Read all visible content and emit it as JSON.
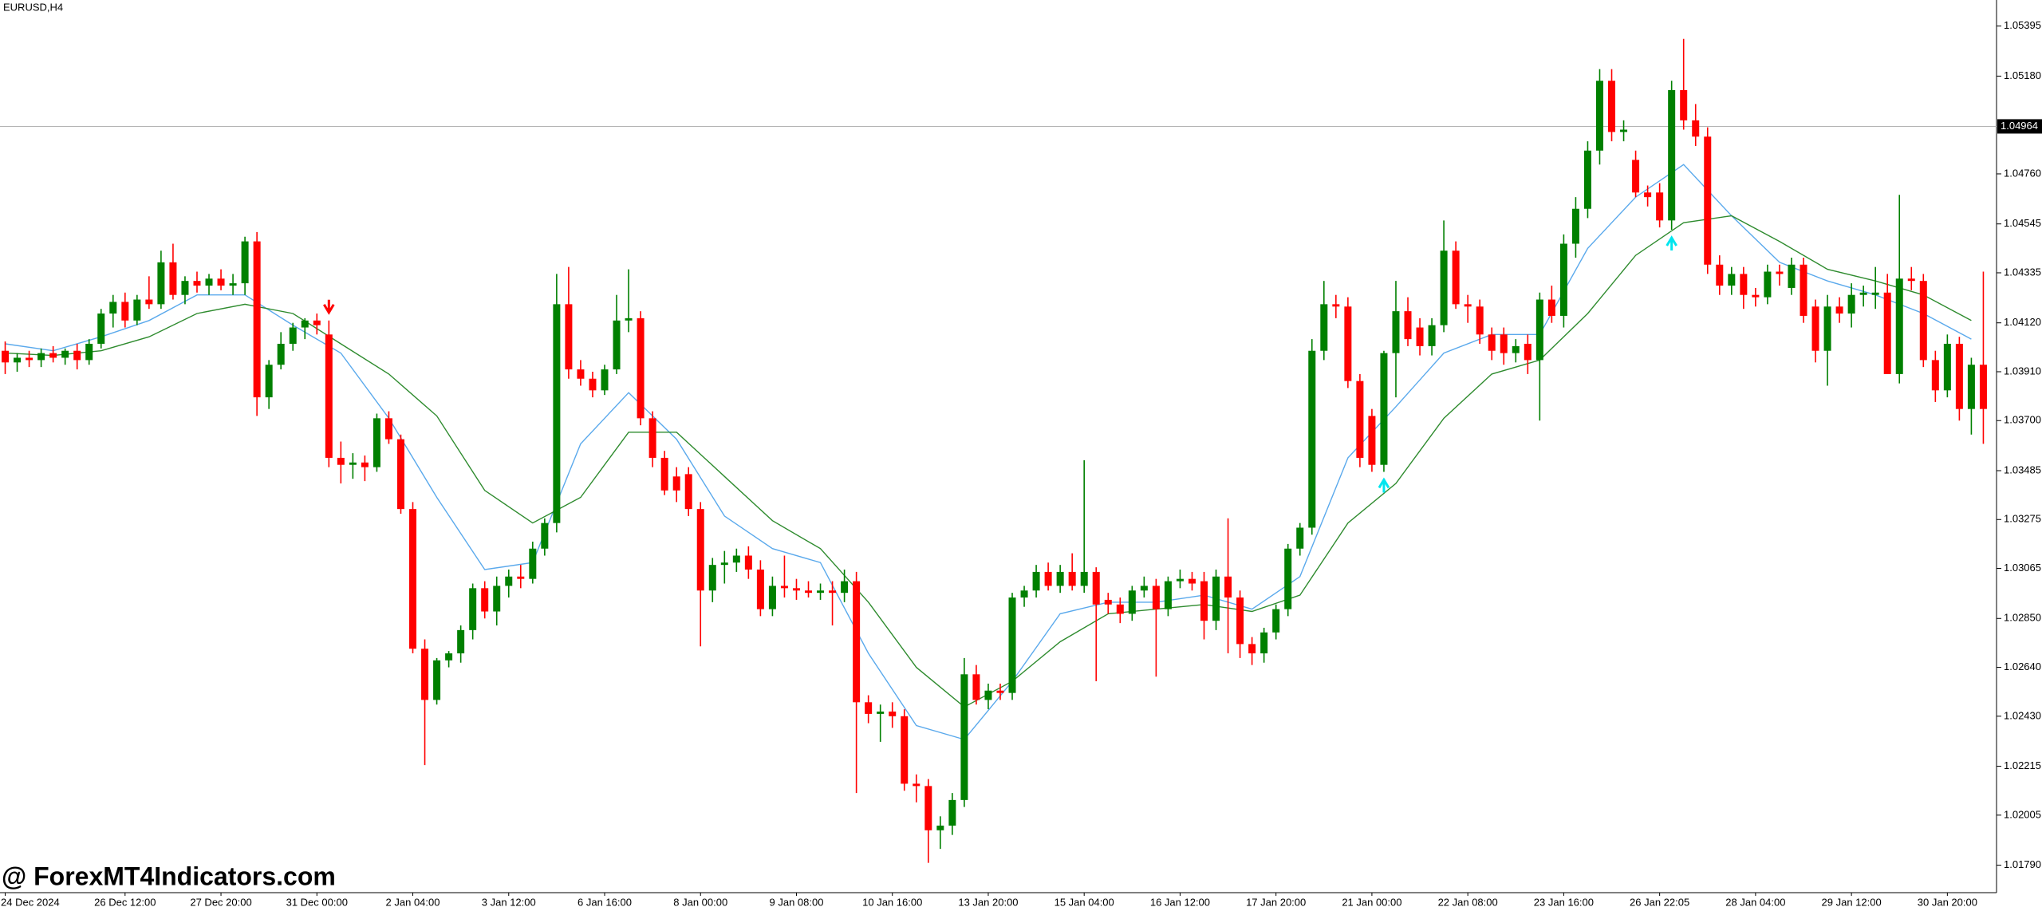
{
  "chart_data": {
    "type": "candlestick",
    "title": "EURUSD,H4",
    "watermark": "@ ForexMT4Indicators.com",
    "categories": [
      "24 Dec 2024",
      null,
      null,
      null,
      null,
      null,
      null,
      null,
      null,
      null,
      "26 Dec 12:00",
      null,
      null,
      null,
      null,
      null,
      null,
      null,
      "27 Dec 20:00",
      null,
      null,
      null,
      null,
      null,
      null,
      null,
      "31 Dec 00:00",
      null,
      null,
      null,
      null,
      null,
      null,
      null,
      "2 Jan 04:00",
      null,
      null,
      null,
      null,
      null,
      null,
      null,
      "3 Jan 12:00",
      null,
      null,
      null,
      null,
      null,
      null,
      null,
      "6 Jan 16:00",
      null,
      null,
      null,
      null,
      null,
      null,
      null,
      "8 Jan 00:00",
      null,
      null,
      null,
      null,
      null,
      null,
      null,
      "9 Jan 08:00",
      null,
      null,
      null,
      null,
      null,
      null,
      null,
      "10 Jan 16:00",
      null,
      null,
      null,
      null,
      null,
      null,
      null,
      "13 Jan 20:00",
      null,
      null,
      null,
      null,
      null,
      null,
      null,
      "15 Jan 04:00",
      null,
      null,
      null,
      null,
      null,
      null,
      null,
      "16 Jan 12:00",
      null,
      null,
      null,
      null,
      null,
      null,
      null,
      "17 Jan 20:00",
      null,
      null,
      null,
      null,
      null,
      null,
      null,
      "21 Jan 00:00",
      null,
      null,
      null,
      null,
      null,
      null,
      null,
      "22 Jan 08:00",
      null,
      null,
      null,
      null,
      null,
      null,
      null,
      "23 Jan 16:00",
      null,
      null,
      null,
      null,
      null,
      null,
      null,
      "26 Jan 22:05",
      null,
      null,
      null,
      null,
      null,
      null,
      null,
      "28 Jan 04:00",
      null,
      null,
      null,
      null,
      null,
      null,
      null,
      "29 Jan 12:00",
      null,
      null,
      null,
      null,
      null,
      null,
      null,
      "30 Jan 20:00",
      null,
      null,
      null
    ],
    "ohlc": [
      [
        1.04,
        1.0404,
        1.039,
        1.0395
      ],
      [
        1.0395,
        1.0399,
        1.0391,
        1.0397
      ],
      [
        1.0397,
        1.04,
        1.0393,
        1.0396
      ],
      [
        1.0396,
        1.0401,
        1.0393,
        1.0399
      ],
      [
        1.0399,
        1.0402,
        1.0395,
        1.0397
      ],
      [
        1.0397,
        1.0401,
        1.0394,
        1.04
      ],
      [
        1.04,
        1.0403,
        1.0392,
        1.0396
      ],
      [
        1.0396,
        1.0405,
        1.0394,
        1.0403
      ],
      [
        1.0403,
        1.0418,
        1.0401,
        1.0416
      ],
      [
        1.0416,
        1.0424,
        1.041,
        1.0421
      ],
      [
        1.0421,
        1.0425,
        1.041,
        1.0413
      ],
      [
        1.0413,
        1.0424,
        1.0411,
        1.0422
      ],
      [
        1.0422,
        1.0432,
        1.0418,
        1.042
      ],
      [
        1.042,
        1.0443,
        1.0418,
        1.0438
      ],
      [
        1.0438,
        1.0446,
        1.0422,
        1.0424
      ],
      [
        1.0424,
        1.0432,
        1.042,
        1.043
      ],
      [
        1.043,
        1.0434,
        1.0425,
        1.0428
      ],
      [
        1.0428,
        1.0433,
        1.0424,
        1.0431
      ],
      [
        1.0431,
        1.0435,
        1.0426,
        1.0428
      ],
      [
        1.0428,
        1.0433,
        1.0424,
        1.0429
      ],
      [
        1.0429,
        1.0449,
        1.0424,
        1.0447
      ],
      [
        1.0447,
        1.0451,
        1.0372,
        1.038
      ],
      [
        1.038,
        1.0396,
        1.0375,
        1.0394
      ],
      [
        1.0394,
        1.0408,
        1.0392,
        1.0403
      ],
      [
        1.0403,
        1.0412,
        1.04,
        1.041
      ],
      [
        1.041,
        1.0414,
        1.0405,
        1.0413
      ],
      [
        1.0413,
        1.0416,
        1.0407,
        1.0411
      ],
      [
        1.0407,
        1.0413,
        1.035,
        1.0354
      ],
      [
        1.0354,
        1.0361,
        1.0343,
        1.0351
      ],
      [
        1.0351,
        1.0356,
        1.0345,
        1.0352
      ],
      [
        1.0352,
        1.0355,
        1.0344,
        1.035
      ],
      [
        1.035,
        1.0373,
        1.0348,
        1.0371
      ],
      [
        1.0371,
        1.0374,
        1.036,
        1.0362
      ],
      [
        1.0362,
        1.0364,
        1.033,
        1.0332
      ],
      [
        1.0332,
        1.0335,
        1.027,
        1.0272
      ],
      [
        1.0272,
        1.0276,
        1.0222,
        1.025
      ],
      [
        1.025,
        1.0268,
        1.0248,
        1.0267
      ],
      [
        1.0267,
        1.0271,
        1.0264,
        1.027
      ],
      [
        1.027,
        1.0282,
        1.0266,
        1.028
      ],
      [
        1.028,
        1.03,
        1.0276,
        1.0298
      ],
      [
        1.0298,
        1.0301,
        1.0285,
        1.0288
      ],
      [
        1.0288,
        1.0303,
        1.0282,
        1.0299
      ],
      [
        1.0299,
        1.0306,
        1.0294,
        1.0303
      ],
      [
        1.0303,
        1.0308,
        1.0298,
        1.0302
      ],
      [
        1.0302,
        1.0318,
        1.03,
        1.0315
      ],
      [
        1.0315,
        1.0328,
        1.0312,
        1.0326
      ],
      [
        1.0326,
        1.0433,
        1.0322,
        1.042
      ],
      [
        1.042,
        1.0436,
        1.0388,
        1.0392
      ],
      [
        1.0392,
        1.0396,
        1.0385,
        1.0388
      ],
      [
        1.0388,
        1.0391,
        1.038,
        1.0383
      ],
      [
        1.0383,
        1.0394,
        1.0381,
        1.0392
      ],
      [
        1.0392,
        1.0424,
        1.039,
        1.0413
      ],
      [
        1.0413,
        1.0435,
        1.0408,
        1.0414
      ],
      [
        1.0414,
        1.0417,
        1.0368,
        1.0371
      ],
      [
        1.0371,
        1.0374,
        1.035,
        1.0354
      ],
      [
        1.0354,
        1.0357,
        1.0338,
        1.034
      ],
      [
        1.0346,
        1.035,
        1.0335,
        1.034
      ],
      [
        1.0347,
        1.035,
        1.0329,
        1.0332
      ],
      [
        1.0332,
        1.0335,
        1.0273,
        1.0297
      ],
      [
        1.0297,
        1.0311,
        1.0292,
        1.0308
      ],
      [
        1.0308,
        1.0314,
        1.03,
        1.0309
      ],
      [
        1.0309,
        1.0315,
        1.0305,
        1.0312
      ],
      [
        1.0312,
        1.0316,
        1.0302,
        1.0306
      ],
      [
        1.0306,
        1.031,
        1.0286,
        1.0289
      ],
      [
        1.0289,
        1.0303,
        1.0286,
        1.0299
      ],
      [
        1.0299,
        1.0312,
        1.0294,
        1.0298
      ],
      [
        1.0298,
        1.0302,
        1.0293,
        1.0297
      ],
      [
        1.0297,
        1.0301,
        1.0294,
        1.0296
      ],
      [
        1.0296,
        1.03,
        1.0293,
        1.0297
      ],
      [
        1.0297,
        1.0301,
        1.0282,
        1.0296
      ],
      [
        1.0296,
        1.0306,
        1.0292,
        1.0301
      ],
      [
        1.0301,
        1.0305,
        1.021,
        1.0249
      ],
      [
        1.0249,
        1.0252,
        1.024,
        1.0244
      ],
      [
        1.0244,
        1.0248,
        1.0232,
        1.0245
      ],
      [
        1.0245,
        1.0249,
        1.0238,
        1.0243
      ],
      [
        1.0243,
        1.0246,
        1.0211,
        1.0214
      ],
      [
        1.0214,
        1.0218,
        1.0206,
        1.0213
      ],
      [
        1.0213,
        1.0216,
        1.018,
        1.0194
      ],
      [
        1.0194,
        1.02,
        1.0186,
        1.0196
      ],
      [
        1.0196,
        1.021,
        1.0192,
        1.0207
      ],
      [
        1.0207,
        1.0268,
        1.0204,
        1.0261
      ],
      [
        1.0261,
        1.0265,
        1.0248,
        1.025
      ],
      [
        1.025,
        1.0257,
        1.0246,
        1.0254
      ],
      [
        1.0254,
        1.0257,
        1.025,
        1.0253
      ],
      [
        1.0253,
        1.0296,
        1.025,
        1.0294
      ],
      [
        1.0294,
        1.0299,
        1.029,
        1.0297
      ],
      [
        1.0297,
        1.0308,
        1.0294,
        1.0305
      ],
      [
        1.0305,
        1.0309,
        1.0297,
        1.0299
      ],
      [
        1.0299,
        1.0308,
        1.0296,
        1.0305
      ],
      [
        1.0305,
        1.0313,
        1.0297,
        1.0299
      ],
      [
        1.0299,
        1.0353,
        1.0296,
        1.0305
      ],
      [
        1.0305,
        1.0307,
        1.0258,
        1.0291
      ],
      [
        1.0293,
        1.0296,
        1.0287,
        1.0291
      ],
      [
        1.0291,
        1.0294,
        1.0283,
        1.0287
      ],
      [
        1.0287,
        1.0299,
        1.0284,
        1.0297
      ],
      [
        1.0297,
        1.0303,
        1.0294,
        1.0299
      ],
      [
        1.0299,
        1.0302,
        1.026,
        1.0289
      ],
      [
        1.0289,
        1.0303,
        1.0286,
        1.0301
      ],
      [
        1.0301,
        1.0306,
        1.0298,
        1.0302
      ],
      [
        1.0302,
        1.0305,
        1.0297,
        1.03
      ],
      [
        1.0301,
        1.0305,
        1.0276,
        1.0284
      ],
      [
        1.0284,
        1.0306,
        1.028,
        1.0303
      ],
      [
        1.0303,
        1.0328,
        1.027,
        1.0294
      ],
      [
        1.0294,
        1.0297,
        1.0268,
        1.0274
      ],
      [
        1.0274,
        1.0277,
        1.0265,
        1.027
      ],
      [
        1.027,
        1.0281,
        1.0266,
        1.0279
      ],
      [
        1.0279,
        1.0291,
        1.0276,
        1.0289
      ],
      [
        1.0289,
        1.0317,
        1.0286,
        1.0315
      ],
      [
        1.0315,
        1.0326,
        1.0312,
        1.0324
      ],
      [
        1.0324,
        1.0405,
        1.0321,
        1.04
      ],
      [
        1.04,
        1.043,
        1.0396,
        1.042
      ],
      [
        1.042,
        1.0424,
        1.0414,
        1.0419
      ],
      [
        1.0419,
        1.0423,
        1.0384,
        1.0387
      ],
      [
        1.0387,
        1.039,
        1.035,
        1.0354
      ],
      [
        1.0372,
        1.0375,
        1.0348,
        1.0351
      ],
      [
        1.0351,
        1.04,
        1.0348,
        1.0399
      ],
      [
        1.0399,
        1.043,
        1.038,
        1.0417
      ],
      [
        1.0417,
        1.0423,
        1.0402,
        1.0405
      ],
      [
        1.041,
        1.0414,
        1.0398,
        1.0402
      ],
      [
        1.0402,
        1.0414,
        1.0398,
        1.0411
      ],
      [
        1.0411,
        1.0456,
        1.0408,
        1.0443
      ],
      [
        1.0443,
        1.0447,
        1.0418,
        1.042
      ],
      [
        1.042,
        1.0424,
        1.0412,
        1.0419
      ],
      [
        1.0419,
        1.0422,
        1.0403,
        1.0407
      ],
      [
        1.0407,
        1.041,
        1.0396,
        1.04
      ],
      [
        1.0407,
        1.041,
        1.0394,
        1.0399
      ],
      [
        1.0399,
        1.0405,
        1.0395,
        1.0402
      ],
      [
        1.0403,
        1.0407,
        1.039,
        1.0396
      ],
      [
        1.0396,
        1.0425,
        1.037,
        1.0422
      ],
      [
        1.0422,
        1.0428,
        1.0412,
        1.0415
      ],
      [
        1.0415,
        1.045,
        1.041,
        1.0446
      ],
      [
        1.0446,
        1.0466,
        1.044,
        1.0461
      ],
      [
        1.0461,
        1.049,
        1.0457,
        1.0486
      ],
      [
        1.0486,
        1.0521,
        1.048,
        1.0516
      ],
      [
        1.0516,
        1.0521,
        1.049,
        1.0494
      ],
      [
        1.0494,
        1.0499,
        1.049,
        1.0495
      ],
      [
        1.0482,
        1.0486,
        1.0466,
        1.0468
      ],
      [
        1.0468,
        1.0471,
        1.0462,
        1.0466
      ],
      [
        1.0468,
        1.0472,
        1.0453,
        1.0456
      ],
      [
        1.0456,
        1.0516,
        1.0452,
        1.0512
      ],
      [
        1.0512,
        1.0534,
        1.0495,
        1.0499
      ],
      [
        1.0499,
        1.0506,
        1.0488,
        1.0492
      ],
      [
        1.0492,
        1.0496,
        1.0433,
        1.0437
      ],
      [
        1.0437,
        1.0441,
        1.0424,
        1.0428
      ],
      [
        1.0428,
        1.0436,
        1.0424,
        1.0433
      ],
      [
        1.0433,
        1.0436,
        1.0418,
        1.0424
      ],
      [
        1.0424,
        1.0427,
        1.0419,
        1.0423
      ],
      [
        1.0423,
        1.0437,
        1.042,
        1.0434
      ],
      [
        1.0434,
        1.0437,
        1.0428,
        1.0433
      ],
      [
        1.0427,
        1.044,
        1.0424,
        1.0437
      ],
      [
        1.0437,
        1.044,
        1.0412,
        1.0415
      ],
      [
        1.0419,
        1.0422,
        1.0395,
        1.04
      ],
      [
        1.04,
        1.0424,
        1.0385,
        1.0419
      ],
      [
        1.0419,
        1.0423,
        1.0412,
        1.0416
      ],
      [
        1.0416,
        1.0429,
        1.041,
        1.0424
      ],
      [
        1.0424,
        1.0428,
        1.0419,
        1.0425
      ],
      [
        1.0424,
        1.0436,
        1.0418,
        1.0425
      ],
      [
        1.0425,
        1.0433,
        1.039,
        1.039
      ],
      [
        1.039,
        1.0467,
        1.0386,
        1.0431
      ],
      [
        1.0431,
        1.0436,
        1.0426,
        1.043
      ],
      [
        1.043,
        1.0433,
        1.0393,
        1.0396
      ],
      [
        1.0396,
        1.04,
        1.0378,
        1.0383
      ],
      [
        1.0383,
        1.0407,
        1.038,
        1.0403
      ],
      [
        1.0403,
        1.0406,
        1.037,
        1.0375
      ],
      [
        1.0375,
        1.0397,
        1.0364,
        1.0394
      ],
      [
        1.0394,
        1.0434,
        1.036,
        1.0375
      ]
    ],
    "up_color": "#008000",
    "down_color": "#ff0000",
    "series": [
      {
        "color": "#5aa9ec",
        "x": [
          0,
          4,
          8,
          12,
          16,
          20,
          24,
          28,
          32,
          36,
          40,
          44,
          48,
          52,
          56,
          60,
          64,
          68,
          72,
          76,
          80,
          84,
          88,
          92,
          96,
          100,
          104,
          108,
          112,
          116,
          120,
          124,
          128,
          132,
          136,
          140,
          144,
          148,
          152,
          156,
          160,
          164
        ],
        "values": [
          1.0403,
          1.04,
          1.0406,
          1.0413,
          1.0424,
          1.0424,
          1.0411,
          1.0399,
          1.0371,
          1.0337,
          1.0306,
          1.0309,
          1.036,
          1.0382,
          1.0362,
          1.0329,
          1.0315,
          1.0309,
          1.027,
          1.0239,
          1.0233,
          1.0258,
          1.0287,
          1.0292,
          1.0292,
          1.0295,
          1.0289,
          1.0303,
          1.0354,
          1.0376,
          1.0399,
          1.0407,
          1.0407,
          1.0444,
          1.0466,
          1.048,
          1.0458,
          1.0438,
          1.043,
          1.0424,
          1.0416,
          1.0405
        ]
      },
      {
        "color": "#2e8b2e",
        "x": [
          0,
          4,
          8,
          12,
          16,
          20,
          24,
          28,
          32,
          36,
          40,
          44,
          48,
          52,
          56,
          60,
          64,
          68,
          72,
          76,
          80,
          84,
          88,
          92,
          96,
          100,
          104,
          108,
          112,
          116,
          120,
          124,
          128,
          132,
          136,
          140,
          144,
          148,
          152,
          156,
          160,
          164
        ],
        "values": [
          1.0399,
          1.0398,
          1.04,
          1.0406,
          1.0416,
          1.042,
          1.0416,
          1.0403,
          1.039,
          1.0372,
          1.034,
          1.0326,
          1.0337,
          1.0365,
          1.0365,
          1.0346,
          1.0327,
          1.0315,
          1.0292,
          1.0264,
          1.0247,
          1.0258,
          1.0275,
          1.0287,
          1.0289,
          1.0291,
          1.0288,
          1.0295,
          1.0326,
          1.0343,
          1.0371,
          1.039,
          1.0396,
          1.0416,
          1.0441,
          1.0455,
          1.0458,
          1.0447,
          1.0435,
          1.043,
          1.0424,
          1.0413
        ]
      }
    ],
    "signals": {
      "down": [
        27
      ],
      "up": [
        115,
        139
      ]
    },
    "down_signal_color": "#ff0000",
    "up_signal_color": "#00e5ee",
    "current_price": 1.04964,
    "ylim": [
      1.01672,
      1.05507
    ],
    "yticks": [
      1.05395,
      {
        "value": 1.0518,
        "label": "1.05180"
      },
      {
        "value": 1.0476,
        "label": "1.04760"
      },
      1.04545,
      1.04335,
      {
        "value": 1.0412,
        "label": "1.04120"
      },
      {
        "value": 1.0391,
        "label": "1.03910"
      },
      {
        "value": 1.037,
        "label": "1.03700"
      },
      1.03485,
      1.03275,
      1.03065,
      {
        "value": 1.0285,
        "label": "1.02850"
      },
      {
        "value": 1.0264,
        "label": "1.02640"
      },
      {
        "value": 1.0243,
        "label": "1.02430"
      },
      1.02215,
      1.02005,
      {
        "value": 1.0179,
        "label": "1.01790"
      }
    ]
  }
}
